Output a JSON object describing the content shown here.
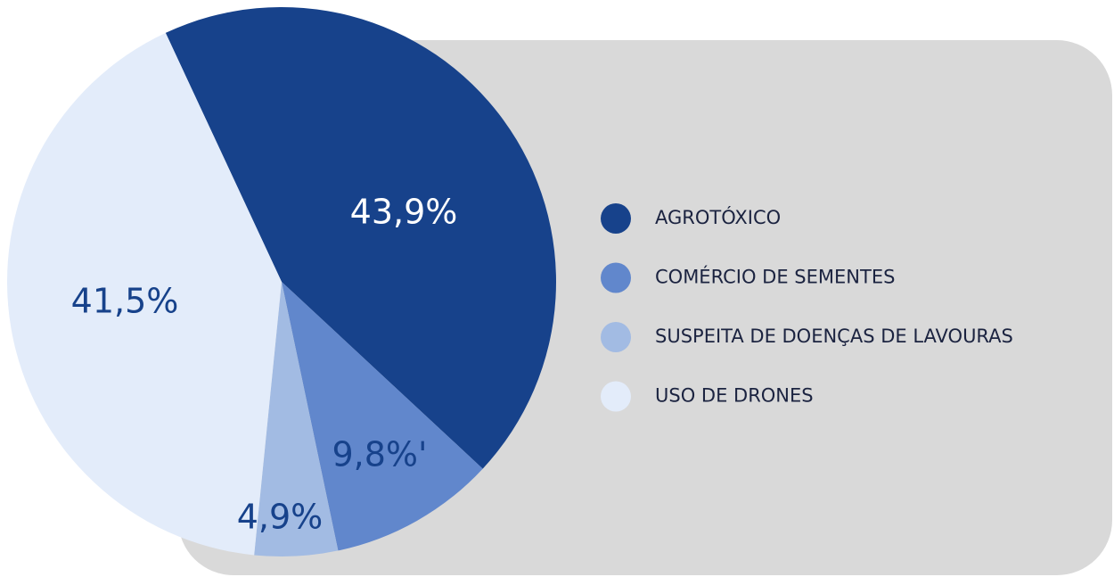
{
  "chart_data": {
    "type": "pie",
    "categories": [
      "AGROTÓXICO",
      "COMÉRCIO DE SEMENTES",
      "SUSPEITA DE DOENÇAS DE LAVOURAS",
      "USO DE DRONES"
    ],
    "values": [
      43.9,
      9.8,
      4.9,
      41.5
    ],
    "value_labels": [
      "43,9%",
      "9,8%'",
      "4,9%",
      "41,5%"
    ],
    "colors": [
      "#17428b",
      "#6187cc",
      "#a2bbe3",
      "#e3ecfa"
    ],
    "legend": "right"
  }
}
